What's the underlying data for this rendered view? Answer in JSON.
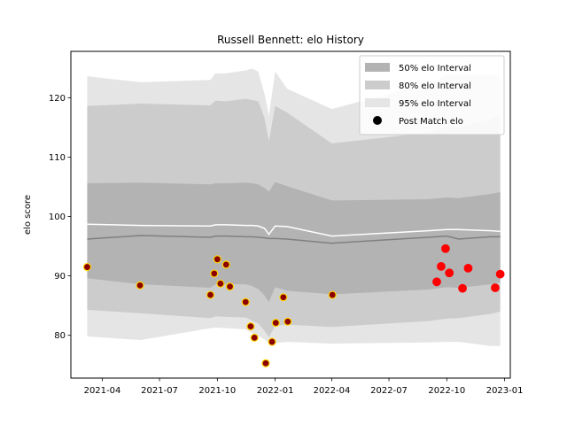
{
  "chart_data": {
    "type": "line",
    "title": "Russell Bennett: elo History",
    "xlabel": "",
    "ylabel": "elo score",
    "xlim": [
      "2021-02-10",
      "2023-01-10"
    ],
    "ylim": [
      72.8,
      127.8
    ],
    "x_ticks": [
      "2021-04-01",
      "2021-07-01",
      "2021-10-01",
      "2022-01-01",
      "2022-04-01",
      "2022-07-01",
      "2022-10-01",
      "2023-01-01"
    ],
    "x_tick_labels": [
      "2021-04",
      "2021-07",
      "2021-10",
      "2022-01",
      "2022-04",
      "2022-07",
      "2022-10",
      "2023-01"
    ],
    "y_ticks": [
      80,
      90,
      100,
      110,
      120
    ],
    "grid": false,
    "legend_placement": "top-right",
    "colors": {
      "band50": "#b3b3b3",
      "band80": "#cccccc",
      "band95": "#e5e5e5",
      "median_line": "#808080",
      "mean_line": "#ffffff",
      "point_past": "#8b0000",
      "point_past_edge": "#ffd700",
      "point_recent": "#ff0000"
    },
    "bands": {
      "x": [
        "2021-03-08",
        "2021-06-01",
        "2021-09-20",
        "2021-09-28",
        "2021-10-15",
        "2021-11-15",
        "2021-11-25",
        "2021-12-05",
        "2021-12-15",
        "2021-12-22",
        "2022-01-01",
        "2022-01-20",
        "2022-04-01",
        "2022-09-01",
        "2022-10-01",
        "2022-10-20",
        "2022-12-10",
        "2022-12-25"
      ],
      "p95_upper": [
        123.6,
        122.6,
        123.0,
        124.1,
        124.1,
        124.6,
        124.9,
        124.4,
        120.6,
        117.0,
        124.4,
        121.5,
        118.1,
        122.4,
        123.8,
        123.8,
        123.8,
        123.8
      ],
      "p80_upper": [
        118.6,
        119.0,
        118.7,
        119.5,
        119.4,
        119.8,
        119.6,
        119.4,
        116.6,
        112.7,
        118.6,
        117.5,
        112.3,
        114.1,
        115.1,
        115.0,
        116.4,
        117.2
      ],
      "p50_upper": [
        105.6,
        105.7,
        105.4,
        105.6,
        105.6,
        105.7,
        105.6,
        105.4,
        104.8,
        104.2,
        105.8,
        105.1,
        102.7,
        102.9,
        103.2,
        103.1,
        103.8,
        104.1
      ],
      "p50_lower": [
        89.6,
        88.6,
        88.0,
        88.6,
        88.6,
        88.6,
        88.3,
        87.8,
        86.7,
        85.6,
        88.1,
        87.5,
        86.9,
        87.7,
        88.1,
        88.0,
        88.6,
        88.9
      ],
      "p80_lower": [
        84.3,
        83.7,
        82.9,
        83.2,
        83.1,
        83.0,
        82.5,
        82.0,
        80.8,
        79.7,
        81.6,
        81.8,
        81.4,
        82.4,
        82.8,
        82.9,
        83.6,
        84.0
      ],
      "p95_lower": [
        79.8,
        79.2,
        81.2,
        81.3,
        81.2,
        81.0,
        80.4,
        79.9,
        79.3,
        78.7,
        78.7,
        78.9,
        78.6,
        78.8,
        78.9,
        78.9,
        78.2,
        78.2
      ],
      "median": [
        96.2,
        96.8,
        96.5,
        96.7,
        96.7,
        96.6,
        96.6,
        96.5,
        96.4,
        96.3,
        96.3,
        96.2,
        95.5,
        96.5,
        96.7,
        96.2,
        96.6,
        96.6
      ],
      "mean": [
        98.7,
        98.5,
        98.4,
        98.6,
        98.6,
        98.5,
        98.5,
        98.4,
        98.0,
        97.0,
        98.4,
        98.3,
        96.7,
        97.6,
        97.8,
        97.8,
        97.6,
        97.5
      ]
    },
    "series": [
      {
        "name": "Post Match elo",
        "points": [
          {
            "x": "2021-03-08",
            "y": 91.5,
            "style": "past"
          },
          {
            "x": "2021-05-31",
            "y": 88.4,
            "style": "past"
          },
          {
            "x": "2021-09-20",
            "y": 86.8,
            "style": "past"
          },
          {
            "x": "2021-09-26",
            "y": 90.4,
            "style": "past"
          },
          {
            "x": "2021-10-01",
            "y": 92.8,
            "style": "past"
          },
          {
            "x": "2021-10-06",
            "y": 88.7,
            "style": "past"
          },
          {
            "x": "2021-10-15",
            "y": 91.9,
            "style": "past"
          },
          {
            "x": "2021-10-21",
            "y": 88.2,
            "style": "past"
          },
          {
            "x": "2021-11-15",
            "y": 85.6,
            "style": "past"
          },
          {
            "x": "2021-11-23",
            "y": 81.5,
            "style": "past"
          },
          {
            "x": "2021-11-29",
            "y": 79.6,
            "style": "past"
          },
          {
            "x": "2021-12-17",
            "y": 75.3,
            "style": "past"
          },
          {
            "x": "2021-12-27",
            "y": 78.9,
            "style": "past"
          },
          {
            "x": "2022-01-02",
            "y": 82.1,
            "style": "past"
          },
          {
            "x": "2022-01-14",
            "y": 86.4,
            "style": "past"
          },
          {
            "x": "2022-01-21",
            "y": 82.3,
            "style": "past"
          },
          {
            "x": "2022-04-02",
            "y": 86.8,
            "style": "past"
          },
          {
            "x": "2022-09-15",
            "y": 89.0,
            "style": "recent"
          },
          {
            "x": "2022-09-22",
            "y": 91.6,
            "style": "recent"
          },
          {
            "x": "2022-09-29",
            "y": 94.6,
            "style": "recent"
          },
          {
            "x": "2022-10-05",
            "y": 90.5,
            "style": "recent"
          },
          {
            "x": "2022-10-26",
            "y": 87.9,
            "style": "recent"
          },
          {
            "x": "2022-11-04",
            "y": 91.3,
            "style": "recent"
          },
          {
            "x": "2022-12-17",
            "y": 88.0,
            "style": "recent"
          },
          {
            "x": "2022-12-25",
            "y": 90.3,
            "style": "recent"
          }
        ]
      }
    ],
    "legend": [
      {
        "label": "50% elo Interval",
        "kind": "patch",
        "color_key": "band50"
      },
      {
        "label": "80% elo Interval",
        "kind": "patch",
        "color_key": "band80"
      },
      {
        "label": "95% elo Interval",
        "kind": "patch",
        "color_key": "band95"
      },
      {
        "label": "Post Match elo",
        "kind": "marker",
        "color": "#000000"
      }
    ]
  }
}
